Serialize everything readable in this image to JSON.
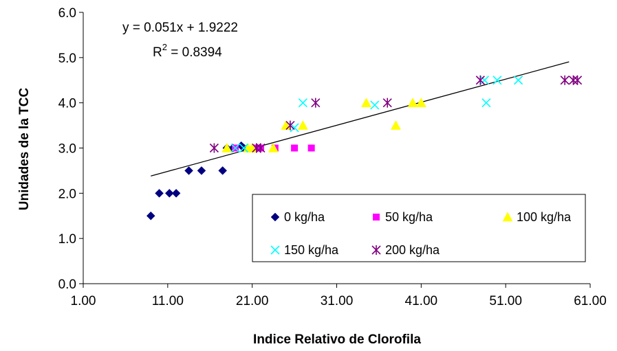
{
  "chart_data": {
    "type": "scatter",
    "xlabel": "Indice Relativo de Clorofila",
    "ylabel": "Unidades de la TCC",
    "xlim": [
      1,
      61
    ],
    "ylim": [
      0,
      6
    ],
    "x_ticks": [
      "1.00",
      "11.00",
      "21.00",
      "31.00",
      "41.00",
      "51.00",
      "61.00"
    ],
    "y_ticks": [
      "0.0",
      "1.0",
      "2.0",
      "3.0",
      "4.0",
      "5.0",
      "6.0"
    ],
    "grid": false,
    "legend_position": "bottom-right",
    "series": [
      {
        "name": "0 kg/ha",
        "marker": "diamond",
        "color": "#000080",
        "points": [
          [
            9.0,
            1.5
          ],
          [
            10.0,
            2.0
          ],
          [
            11.2,
            2.0
          ],
          [
            12.0,
            2.0
          ],
          [
            13.5,
            2.5
          ],
          [
            15.0,
            2.5
          ],
          [
            17.5,
            2.5
          ],
          [
            18.0,
            3.0
          ],
          [
            18.7,
            3.0
          ],
          [
            19.7,
            3.05
          ],
          [
            20.0,
            3.0
          ]
        ]
      },
      {
        "name": "50 kg/ha",
        "marker": "square",
        "color": "#FF00FF",
        "points": [
          [
            19.0,
            3.0
          ],
          [
            21.5,
            3.0
          ],
          [
            22.0,
            3.0
          ],
          [
            23.7,
            3.0
          ],
          [
            26.0,
            3.0
          ],
          [
            28.0,
            3.0
          ]
        ]
      },
      {
        "name": "100 kg/ha",
        "marker": "triangle",
        "color": "#FFFF00",
        "points": [
          [
            18.0,
            3.0
          ],
          [
            20.5,
            3.0
          ],
          [
            21.0,
            3.0
          ],
          [
            23.5,
            3.0
          ],
          [
            25.0,
            3.5
          ],
          [
            27.0,
            3.5
          ],
          [
            34.5,
            4.0
          ],
          [
            38.0,
            3.5
          ],
          [
            40.0,
            4.0
          ],
          [
            41.0,
            4.0
          ]
        ]
      },
      {
        "name": "150 kg/ha",
        "marker": "x",
        "color": "#00FFFF",
        "points": [
          [
            19.0,
            3.0
          ],
          [
            20.0,
            3.0
          ],
          [
            26.0,
            3.45
          ],
          [
            27.0,
            4.0
          ],
          [
            35.5,
            3.95
          ],
          [
            48.5,
            4.5
          ],
          [
            48.7,
            4.0
          ],
          [
            50.0,
            4.5
          ],
          [
            52.5,
            4.5
          ]
        ]
      },
      {
        "name": "200 kg/ha",
        "marker": "asterisk",
        "color": "#800080",
        "points": [
          [
            16.5,
            3.0
          ],
          [
            21.5,
            3.0
          ],
          [
            22.0,
            3.0
          ],
          [
            25.5,
            3.5
          ],
          [
            28.5,
            4.0
          ],
          [
            37.0,
            4.0
          ],
          [
            48.0,
            4.5
          ],
          [
            58.0,
            4.5
          ],
          [
            59.0,
            4.5
          ],
          [
            59.5,
            4.5
          ]
        ]
      }
    ],
    "trendline": {
      "slope": 0.051,
      "intercept": 1.9222,
      "x_range": [
        9.0,
        58.5
      ],
      "equation_label": "y = 0.051x + 1.9222",
      "r2_prefix": "R",
      "r2_sup": "2",
      "r2_value": " = 0.8394"
    }
  }
}
